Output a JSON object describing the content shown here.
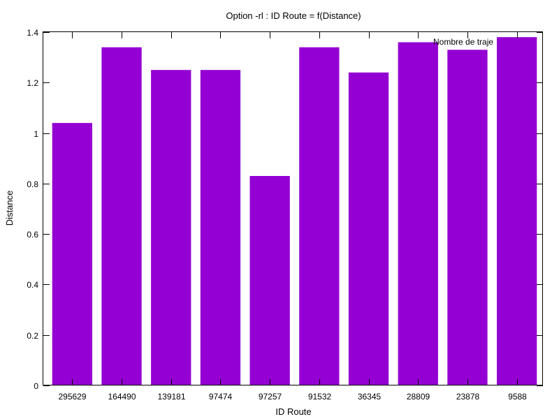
{
  "chart_data": {
    "type": "bar",
    "title": "Option -rl : ID Route = f(Distance)",
    "xlabel": "ID Route",
    "ylabel": "Distance",
    "categories": [
      "295629",
      "164490",
      "139181",
      "97474",
      "97257",
      "91532",
      "36345",
      "28809",
      "23878",
      "9588"
    ],
    "series": [
      {
        "name": "Nombre de traje",
        "color": "#9400d3",
        "values": [
          1.04,
          1.34,
          1.25,
          1.25,
          0.83,
          1.34,
          1.24,
          1.36,
          1.33,
          1.38
        ]
      }
    ],
    "ylim": [
      0,
      1.4
    ],
    "yticks": [
      "0",
      "0.2",
      "0.4",
      "0.6",
      "0.8",
      "1",
      "1.2",
      "1.4"
    ],
    "grid": false,
    "legend": "top-right"
  }
}
